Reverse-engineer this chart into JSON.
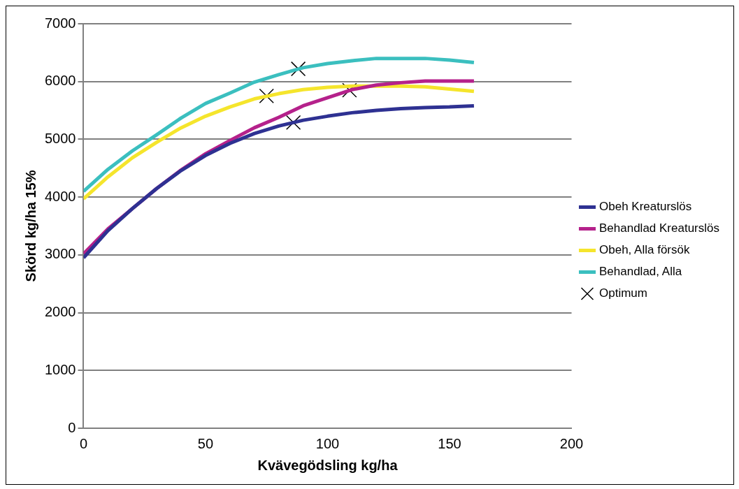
{
  "chart_data": {
    "type": "line",
    "xlabel": "Kvävegödsling kg/ha",
    "ylabel": "Skörd kg/ha 15%",
    "x": [
      0,
      10,
      20,
      30,
      40,
      50,
      60,
      70,
      80,
      90,
      100,
      110,
      120,
      130,
      140,
      150,
      160
    ],
    "xlim": [
      0,
      200
    ],
    "xticks": [
      0,
      50,
      100,
      150,
      200
    ],
    "ylim": [
      0,
      7000
    ],
    "yticks": [
      0,
      1000,
      2000,
      3000,
      4000,
      5000,
      6000,
      7000
    ],
    "grid": "y",
    "legend": "right",
    "marker": "none",
    "line_style": "solid",
    "series": [
      {
        "name": "Obeh Kreaturslös",
        "color": "#2e3192",
        "values": [
          2950,
          3420,
          3800,
          4150,
          4460,
          4720,
          4930,
          5100,
          5230,
          5330,
          5400,
          5460,
          5500,
          5530,
          5550,
          5560,
          5580
        ]
      },
      {
        "name": "Behandlad Kreaturslös",
        "color": "#b5218b",
        "values": [
          3020,
          3450,
          3800,
          4150,
          4470,
          4750,
          4980,
          5200,
          5380,
          5580,
          5720,
          5860,
          5940,
          5980,
          6010,
          6010,
          6010
        ]
      },
      {
        "name": "Obeh, Alla försök",
        "color": "#f5e52c",
        "values": [
          3970,
          4350,
          4680,
          4950,
          5200,
          5400,
          5560,
          5700,
          5790,
          5860,
          5900,
          5920,
          5920,
          5920,
          5910,
          5870,
          5830
        ]
      },
      {
        "name": "Behandlad, Alla",
        "color": "#3bbfbf",
        "values": [
          4100,
          4480,
          4800,
          5080,
          5370,
          5620,
          5800,
          5990,
          6120,
          6240,
          6310,
          6360,
          6400,
          6400,
          6400,
          6370,
          6330
        ]
      },
      {
        "name": "Optimum",
        "type": "scatter",
        "marker": "cross",
        "color": "#000000",
        "x": [
          75,
          88,
          86,
          109
        ],
        "values": [
          5750,
          6220,
          5290,
          5850
        ]
      }
    ]
  }
}
